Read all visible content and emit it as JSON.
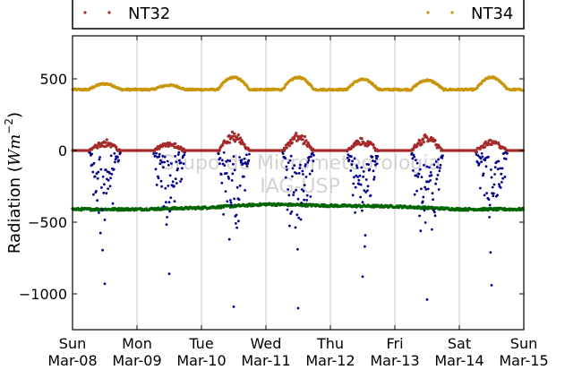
{
  "chart_data": {
    "type": "scatter",
    "title": "",
    "xlabel": "",
    "ylabel": "Radiation (Wm^-2)",
    "ylabel_main": "Radiation (",
    "ylabel_italic": "Wm",
    "ylabel_sup": "−2",
    "ylabel_close": ")",
    "ylim": [
      -1250,
      800
    ],
    "y_ticks": [
      500,
      0,
      -500,
      -1000
    ],
    "y_tick_labels": [
      "500",
      "0",
      "−500",
      "−1000"
    ],
    "x_range": [
      "2015-03-08",
      "2015-03-15"
    ],
    "x_ticks": [
      {
        "day": "Sun",
        "date": "Mar-08"
      },
      {
        "day": "Mon",
        "date": "Mar-09"
      },
      {
        "day": "Tue",
        "date": "Mar-10"
      },
      {
        "day": "Wed",
        "date": "Mar-11"
      },
      {
        "day": "Thu",
        "date": "Mar-12"
      },
      {
        "day": "Fri",
        "date": "Mar-13"
      },
      {
        "day": "Sat",
        "date": "Mar-14"
      },
      {
        "day": "Sun",
        "date": "Mar-15"
      }
    ],
    "grid": true,
    "legend_placement": "top",
    "legend_labels": [
      "NT32",
      "NT34"
    ],
    "watermark": [
      "Grupo de Micrometeorologia",
      "IAG-USP"
    ],
    "series": [
      {
        "name": "NT32",
        "color": "#a52a2a",
        "baseline": 0,
        "daily_peaks": [
          70,
          60,
          125,
          120,
          80,
          110,
          70
        ],
        "noise": 22
      },
      {
        "name": "NT34",
        "color": "#c8960c",
        "baseline": 425,
        "daily_peaks": [
          465,
          455,
          510,
          510,
          495,
          490,
          510
        ],
        "noise": 6
      },
      {
        "color": "#00008b",
        "baseline": 0,
        "daily_min": [
          -930,
          -860,
          -1090,
          -1100,
          -880,
          -1040,
          -940
        ],
        "noise": 0
      },
      {
        "color": "#006400",
        "baseline": -410,
        "daily_level": [
          -410,
          -410,
          -400,
          -375,
          -385,
          -390,
          -410
        ],
        "noise": 8
      }
    ],
    "colors": {
      "nt32": "#a52a2a",
      "nt34": "#c8960c",
      "blue_series": "#00008b",
      "green_series": "#006400",
      "grid": "#c8c8c8",
      "watermark": "#d3d3d3"
    }
  }
}
